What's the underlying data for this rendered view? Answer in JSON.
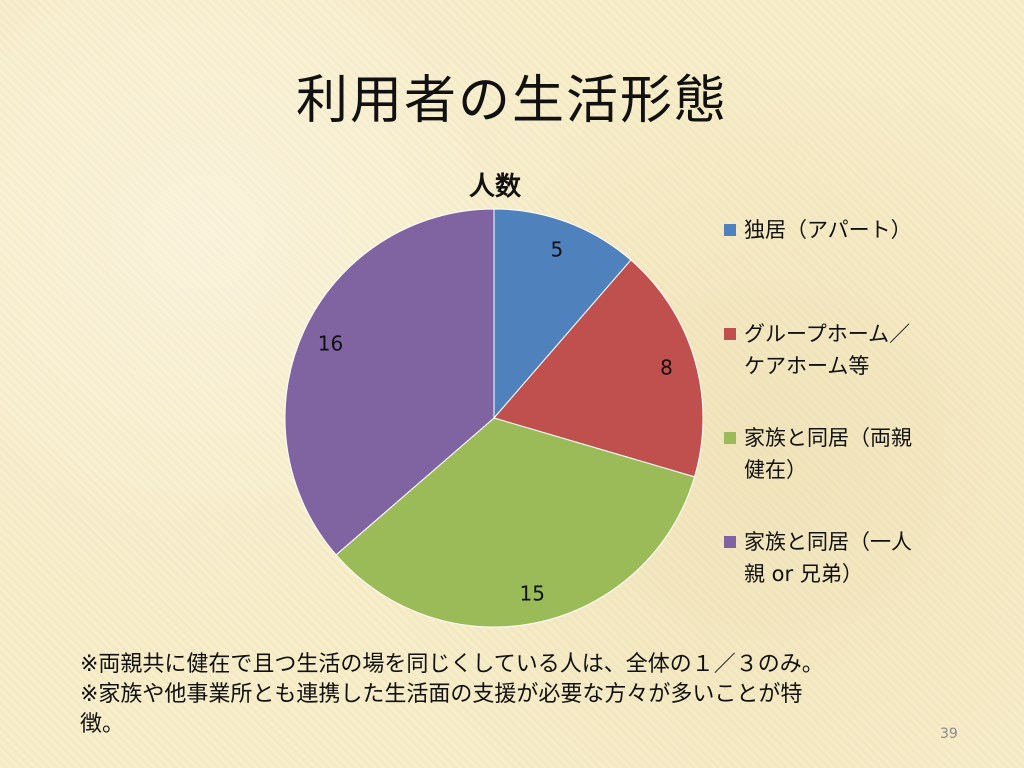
{
  "slide": {
    "title": "利用者の生活形態",
    "notes": [
      "※両親共に健在で且つ生活の場を同じくしている人は、全体の１／３のみ。",
      "※家族や他事業所とも連携した生活面の支援が必要な方々が多いことが特",
      "徴。"
    ],
    "page_number": "39"
  },
  "chart_data": {
    "type": "pie",
    "title": "人数",
    "series": [
      {
        "name": "人数",
        "categories": [
          "独居（アパート）",
          "グループホーム／ケアホーム等",
          "家族と同居（両親健在）",
          "家族と同居（一人親 or 兄弟）"
        ],
        "values": [
          5,
          8,
          15,
          16
        ]
      }
    ],
    "data_labels": [
      "5",
      "8",
      "15",
      "16"
    ],
    "colors": [
      "#4f81bd",
      "#c0504d",
      "#9bbb59",
      "#8064a2"
    ],
    "legend_position": "right",
    "legend": [
      {
        "lines": [
          "独居（アパート）"
        ]
      },
      {
        "lines": [
          "グループホーム／",
          "ケアホーム等"
        ]
      },
      {
        "lines": [
          "家族と同居（両親",
          "健在）"
        ]
      },
      {
        "lines": [
          "家族と同居（一人",
          "親 or 兄弟）"
        ]
      }
    ]
  }
}
